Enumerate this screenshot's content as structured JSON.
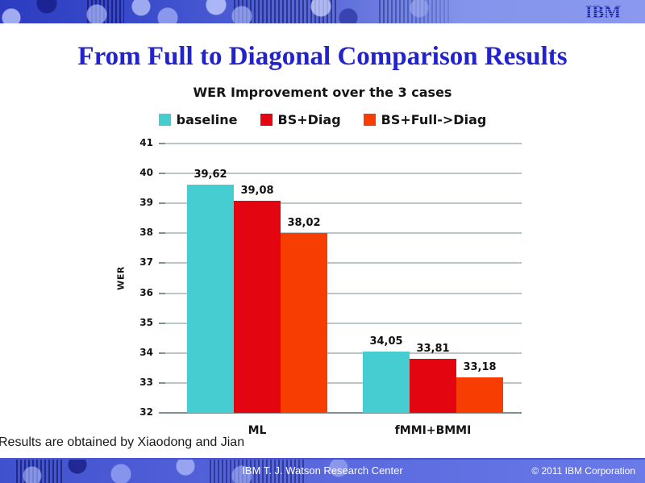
{
  "banner": {
    "logo_text": "IBM"
  },
  "slide": {
    "title": "From Full to Diagonal Comparison Results",
    "note": "Results are obtained by Xiaodong and Jian"
  },
  "footer": {
    "center_text": "IBM T. J. Watson Research Center",
    "right_text": "© 2011 IBM Corporation"
  },
  "colors": {
    "title_blue": "#2323cd",
    "banner_left": "#2c3cc0",
    "banner_right": "#8a99ee",
    "logo_navy": "#111a9e",
    "gridline": "#bcc6c8",
    "axis": "#7e9192",
    "series_teal": "#45cdd2",
    "series_red": "#e30510",
    "series_orange": "#f83d02"
  },
  "chart_data": {
    "type": "bar",
    "title": "WER Improvement over the 3 cases",
    "categories": [
      "ML",
      "fMMI+BMMI"
    ],
    "series": [
      {
        "name": "baseline",
        "color": "#45cdd2",
        "values": [
          39.62,
          34.05
        ]
      },
      {
        "name": "BS+Diag",
        "color": "#e30510",
        "values": [
          39.08,
          33.81
        ]
      },
      {
        "name": "BS+Full->Diag",
        "color": "#f83d02",
        "values": [
          38.02,
          33.18
        ]
      }
    ],
    "data_labels": [
      [
        "39,62",
        "34,05"
      ],
      [
        "39,08",
        "33,81"
      ],
      [
        "38,02",
        "33,18"
      ]
    ],
    "xlabel": "",
    "ylabel": "WER",
    "ylim": [
      32,
      41
    ],
    "ytick_step": 1,
    "grid": true,
    "legend_position": "top",
    "decimal_separator": ","
  }
}
